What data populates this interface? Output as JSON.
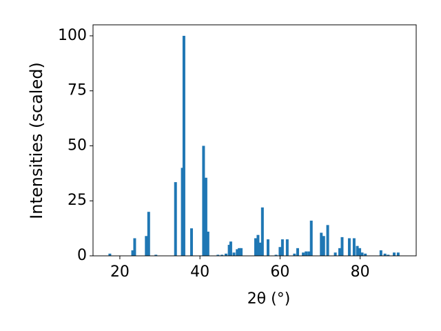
{
  "chart_data": {
    "type": "bar",
    "xlabel": "2θ (°)",
    "ylabel": "Intensities (scaled)",
    "x": [
      17.5,
      23.2,
      23.7,
      26.6,
      27.2,
      29.0,
      33.9,
      35.6,
      36.0,
      37.9,
      40.9,
      41.5,
      42.0,
      44.5,
      45.5,
      46.5,
      47.3,
      47.7,
      48.5,
      49.3,
      49.8,
      50.3,
      53.9,
      54.5,
      55.0,
      55.6,
      57.0,
      59.0,
      60.0,
      60.6,
      61.8,
      63.6,
      64.4,
      65.8,
      66.5,
      67.2,
      67.8,
      70.3,
      70.9,
      71.9,
      73.8,
      74.9,
      75.5,
      77.3,
      78.5,
      79.3,
      79.9,
      80.5,
      81.3,
      85.2,
      86.2,
      87.0,
      88.5,
      89.5
    ],
    "values": [
      1,
      2.5,
      8,
      9,
      20,
      0.5,
      33.5,
      40,
      100,
      12.5,
      50,
      35.5,
      11,
      0.5,
      0.5,
      1,
      5,
      6.5,
      1.5,
      3,
      3.5,
      3.5,
      8,
      9.5,
      6,
      22,
      7.5,
      0.5,
      4,
      7.5,
      7.5,
      1,
      3.5,
      1.5,
      2,
      2,
      16,
      10.5,
      9,
      14,
      1.5,
      3.5,
      8.5,
      8,
      8,
      4.5,
      3.5,
      1.5,
      1,
      2.5,
      1,
      0.5,
      1.5,
      1.5
    ],
    "color": "#1f77b4",
    "xlim": [
      13.3,
      94
    ],
    "xticks": [
      20,
      40,
      60,
      80
    ],
    "ylim": [
      0,
      105
    ],
    "yticks": [
      0,
      25,
      50,
      75,
      100
    ]
  }
}
